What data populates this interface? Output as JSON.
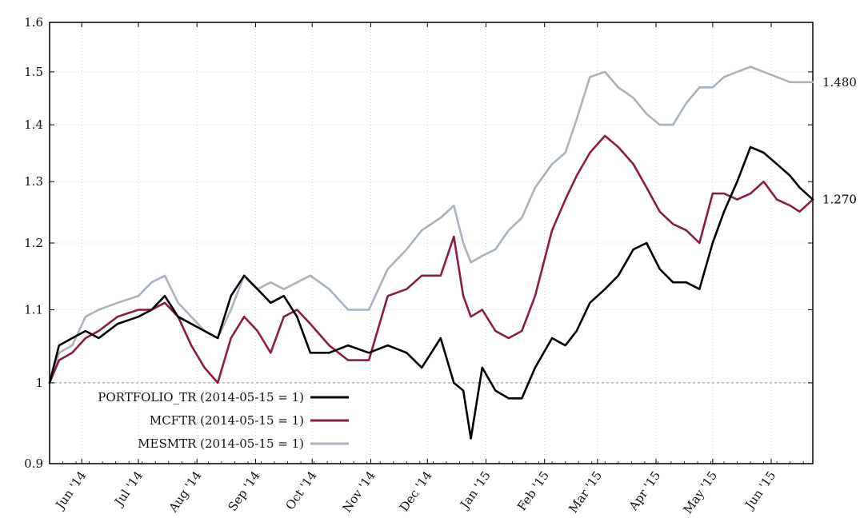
{
  "chart_data": {
    "type": "line",
    "y_scale": "log",
    "ylim": [
      0.9,
      1.6
    ],
    "y_ticks": [
      "0.9",
      "1",
      "1.1",
      "1.2",
      "1.3",
      "1.4",
      "1.5",
      "1.6"
    ],
    "reference_line": 1.0,
    "grid": true,
    "legend_position": "bottom-left",
    "x_start": "2014-05-15",
    "x_end": "2015-06-23",
    "x_ticks": [
      {
        "label": "Jun '14",
        "date": "2014-06-01"
      },
      {
        "label": "Jul '14",
        "date": "2014-07-01"
      },
      {
        "label": "Aug '14",
        "date": "2014-08-01"
      },
      {
        "label": "Sep '14",
        "date": "2014-09-01"
      },
      {
        "label": "Oct '14",
        "date": "2014-10-01"
      },
      {
        "label": "Nov '14",
        "date": "2014-11-01"
      },
      {
        "label": "Dec '14",
        "date": "2014-12-01"
      },
      {
        "label": "Jan '15",
        "date": "2015-01-01"
      },
      {
        "label": "Feb '15",
        "date": "2015-02-01"
      },
      {
        "label": "Mar '15",
        "date": "2015-03-01"
      },
      {
        "label": "Apr '15",
        "date": "2015-04-01"
      },
      {
        "label": "May '15",
        "date": "2015-05-01"
      },
      {
        "label": "Jun '15",
        "date": "2015-06-01"
      }
    ],
    "end_labels": [
      "1.480",
      "1.270",
      "1.270"
    ],
    "series": [
      {
        "name": "PORTFOLIO_TR (2014-05-15 = 1)",
        "color": "#000000",
        "points": [
          [
            "2014-05-15",
            1.0
          ],
          [
            "2014-05-20",
            1.05
          ],
          [
            "2014-05-27",
            1.06
          ],
          [
            "2014-06-03",
            1.07
          ],
          [
            "2014-06-10",
            1.06
          ],
          [
            "2014-06-20",
            1.08
          ],
          [
            "2014-07-01",
            1.09
          ],
          [
            "2014-07-08",
            1.1
          ],
          [
            "2014-07-15",
            1.12
          ],
          [
            "2014-07-22",
            1.09
          ],
          [
            "2014-07-29",
            1.08
          ],
          [
            "2014-08-05",
            1.07
          ],
          [
            "2014-08-12",
            1.06
          ],
          [
            "2014-08-19",
            1.12
          ],
          [
            "2014-08-26",
            1.15
          ],
          [
            "2014-09-02",
            1.13
          ],
          [
            "2014-09-09",
            1.11
          ],
          [
            "2014-09-16",
            1.12
          ],
          [
            "2014-09-23",
            1.09
          ],
          [
            "2014-09-30",
            1.04
          ],
          [
            "2014-10-10",
            1.04
          ],
          [
            "2014-10-20",
            1.05
          ],
          [
            "2014-10-31",
            1.04
          ],
          [
            "2014-11-10",
            1.05
          ],
          [
            "2014-11-20",
            1.04
          ],
          [
            "2014-11-28",
            1.02
          ],
          [
            "2014-12-08",
            1.06
          ],
          [
            "2014-12-15",
            1.0
          ],
          [
            "2014-12-20",
            0.99
          ],
          [
            "2014-12-24",
            0.93
          ],
          [
            "2014-12-30",
            1.02
          ],
          [
            "2015-01-06",
            0.99
          ],
          [
            "2015-01-13",
            0.98
          ],
          [
            "2015-01-20",
            0.98
          ],
          [
            "2015-01-27",
            1.02
          ],
          [
            "2015-02-05",
            1.06
          ],
          [
            "2015-02-12",
            1.05
          ],
          [
            "2015-02-18",
            1.07
          ],
          [
            "2015-02-25",
            1.11
          ],
          [
            "2015-03-05",
            1.13
          ],
          [
            "2015-03-12",
            1.15
          ],
          [
            "2015-03-20",
            1.19
          ],
          [
            "2015-03-27",
            1.2
          ],
          [
            "2015-04-03",
            1.16
          ],
          [
            "2015-04-10",
            1.14
          ],
          [
            "2015-04-17",
            1.14
          ],
          [
            "2015-04-24",
            1.13
          ],
          [
            "2015-05-01",
            1.2
          ],
          [
            "2015-05-07",
            1.25
          ],
          [
            "2015-05-14",
            1.3
          ],
          [
            "2015-05-21",
            1.36
          ],
          [
            "2015-05-28",
            1.35
          ],
          [
            "2015-06-04",
            1.33
          ],
          [
            "2015-06-11",
            1.31
          ],
          [
            "2015-06-16",
            1.29
          ],
          [
            "2015-06-23",
            1.27
          ]
        ]
      },
      {
        "name": "MCFTR (2014-05-15 = 1)",
        "color": "#8b1a4a",
        "points": [
          [
            "2014-05-15",
            1.0
          ],
          [
            "2014-05-20",
            1.03
          ],
          [
            "2014-05-27",
            1.04
          ],
          [
            "2014-06-03",
            1.06
          ],
          [
            "2014-06-10",
            1.07
          ],
          [
            "2014-06-20",
            1.09
          ],
          [
            "2014-07-01",
            1.1
          ],
          [
            "2014-07-08",
            1.1
          ],
          [
            "2014-07-15",
            1.11
          ],
          [
            "2014-07-22",
            1.09
          ],
          [
            "2014-07-29",
            1.05
          ],
          [
            "2014-08-05",
            1.02
          ],
          [
            "2014-08-12",
            1.0
          ],
          [
            "2014-08-19",
            1.06
          ],
          [
            "2014-08-26",
            1.09
          ],
          [
            "2014-09-02",
            1.07
          ],
          [
            "2014-09-09",
            1.04
          ],
          [
            "2014-09-16",
            1.09
          ],
          [
            "2014-09-23",
            1.1
          ],
          [
            "2014-09-30",
            1.08
          ],
          [
            "2014-10-10",
            1.05
          ],
          [
            "2014-10-20",
            1.03
          ],
          [
            "2014-10-31",
            1.03
          ],
          [
            "2014-11-10",
            1.12
          ],
          [
            "2014-11-20",
            1.13
          ],
          [
            "2014-11-28",
            1.15
          ],
          [
            "2014-12-08",
            1.15
          ],
          [
            "2014-12-15",
            1.21
          ],
          [
            "2014-12-20",
            1.12
          ],
          [
            "2014-12-24",
            1.09
          ],
          [
            "2014-12-30",
            1.1
          ],
          [
            "2015-01-06",
            1.07
          ],
          [
            "2015-01-13",
            1.06
          ],
          [
            "2015-01-20",
            1.07
          ],
          [
            "2015-01-27",
            1.12
          ],
          [
            "2015-02-05",
            1.22
          ],
          [
            "2015-02-12",
            1.27
          ],
          [
            "2015-02-18",
            1.31
          ],
          [
            "2015-02-25",
            1.35
          ],
          [
            "2015-03-05",
            1.38
          ],
          [
            "2015-03-12",
            1.36
          ],
          [
            "2015-03-20",
            1.33
          ],
          [
            "2015-03-27",
            1.29
          ],
          [
            "2015-04-03",
            1.25
          ],
          [
            "2015-04-10",
            1.23
          ],
          [
            "2015-04-17",
            1.22
          ],
          [
            "2015-04-24",
            1.2
          ],
          [
            "2015-05-01",
            1.28
          ],
          [
            "2015-05-07",
            1.28
          ],
          [
            "2015-05-14",
            1.27
          ],
          [
            "2015-05-21",
            1.28
          ],
          [
            "2015-05-28",
            1.3
          ],
          [
            "2015-06-04",
            1.27
          ],
          [
            "2015-06-11",
            1.26
          ],
          [
            "2015-06-16",
            1.25
          ],
          [
            "2015-06-23",
            1.27
          ]
        ]
      },
      {
        "name": "MESMTR (2014-05-15 = 1)",
        "color": "#a9b3bf",
        "points": [
          [
            "2014-05-15",
            1.0
          ],
          [
            "2014-05-20",
            1.04
          ],
          [
            "2014-05-27",
            1.05
          ],
          [
            "2014-06-03",
            1.09
          ],
          [
            "2014-06-10",
            1.1
          ],
          [
            "2014-06-20",
            1.11
          ],
          [
            "2014-07-01",
            1.12
          ],
          [
            "2014-07-08",
            1.14
          ],
          [
            "2014-07-15",
            1.15
          ],
          [
            "2014-07-22",
            1.11
          ],
          [
            "2014-07-29",
            1.09
          ],
          [
            "2014-08-05",
            1.07
          ],
          [
            "2014-08-12",
            1.06
          ],
          [
            "2014-08-19",
            1.1
          ],
          [
            "2014-08-26",
            1.15
          ],
          [
            "2014-09-02",
            1.13
          ],
          [
            "2014-09-09",
            1.14
          ],
          [
            "2014-09-16",
            1.13
          ],
          [
            "2014-09-23",
            1.14
          ],
          [
            "2014-09-30",
            1.15
          ],
          [
            "2014-10-10",
            1.13
          ],
          [
            "2014-10-20",
            1.1
          ],
          [
            "2014-10-31",
            1.1
          ],
          [
            "2014-11-10",
            1.16
          ],
          [
            "2014-11-20",
            1.19
          ],
          [
            "2014-11-28",
            1.22
          ],
          [
            "2014-12-08",
            1.24
          ],
          [
            "2014-12-15",
            1.26
          ],
          [
            "2014-12-20",
            1.2
          ],
          [
            "2014-12-24",
            1.17
          ],
          [
            "2014-12-30",
            1.18
          ],
          [
            "2015-01-06",
            1.19
          ],
          [
            "2015-01-13",
            1.22
          ],
          [
            "2015-01-20",
            1.24
          ],
          [
            "2015-01-27",
            1.29
          ],
          [
            "2015-02-05",
            1.33
          ],
          [
            "2015-02-12",
            1.35
          ],
          [
            "2015-02-18",
            1.41
          ],
          [
            "2015-02-25",
            1.49
          ],
          [
            "2015-03-05",
            1.5
          ],
          [
            "2015-03-12",
            1.47
          ],
          [
            "2015-03-20",
            1.45
          ],
          [
            "2015-03-27",
            1.42
          ],
          [
            "2015-04-03",
            1.4
          ],
          [
            "2015-04-10",
            1.4
          ],
          [
            "2015-04-17",
            1.44
          ],
          [
            "2015-04-24",
            1.47
          ],
          [
            "2015-05-01",
            1.47
          ],
          [
            "2015-05-07",
            1.49
          ],
          [
            "2015-05-14",
            1.5
          ],
          [
            "2015-05-21",
            1.51
          ],
          [
            "2015-05-28",
            1.5
          ],
          [
            "2015-06-04",
            1.49
          ],
          [
            "2015-06-11",
            1.48
          ],
          [
            "2015-06-16",
            1.48
          ],
          [
            "2015-06-23",
            1.48
          ]
        ]
      }
    ]
  }
}
